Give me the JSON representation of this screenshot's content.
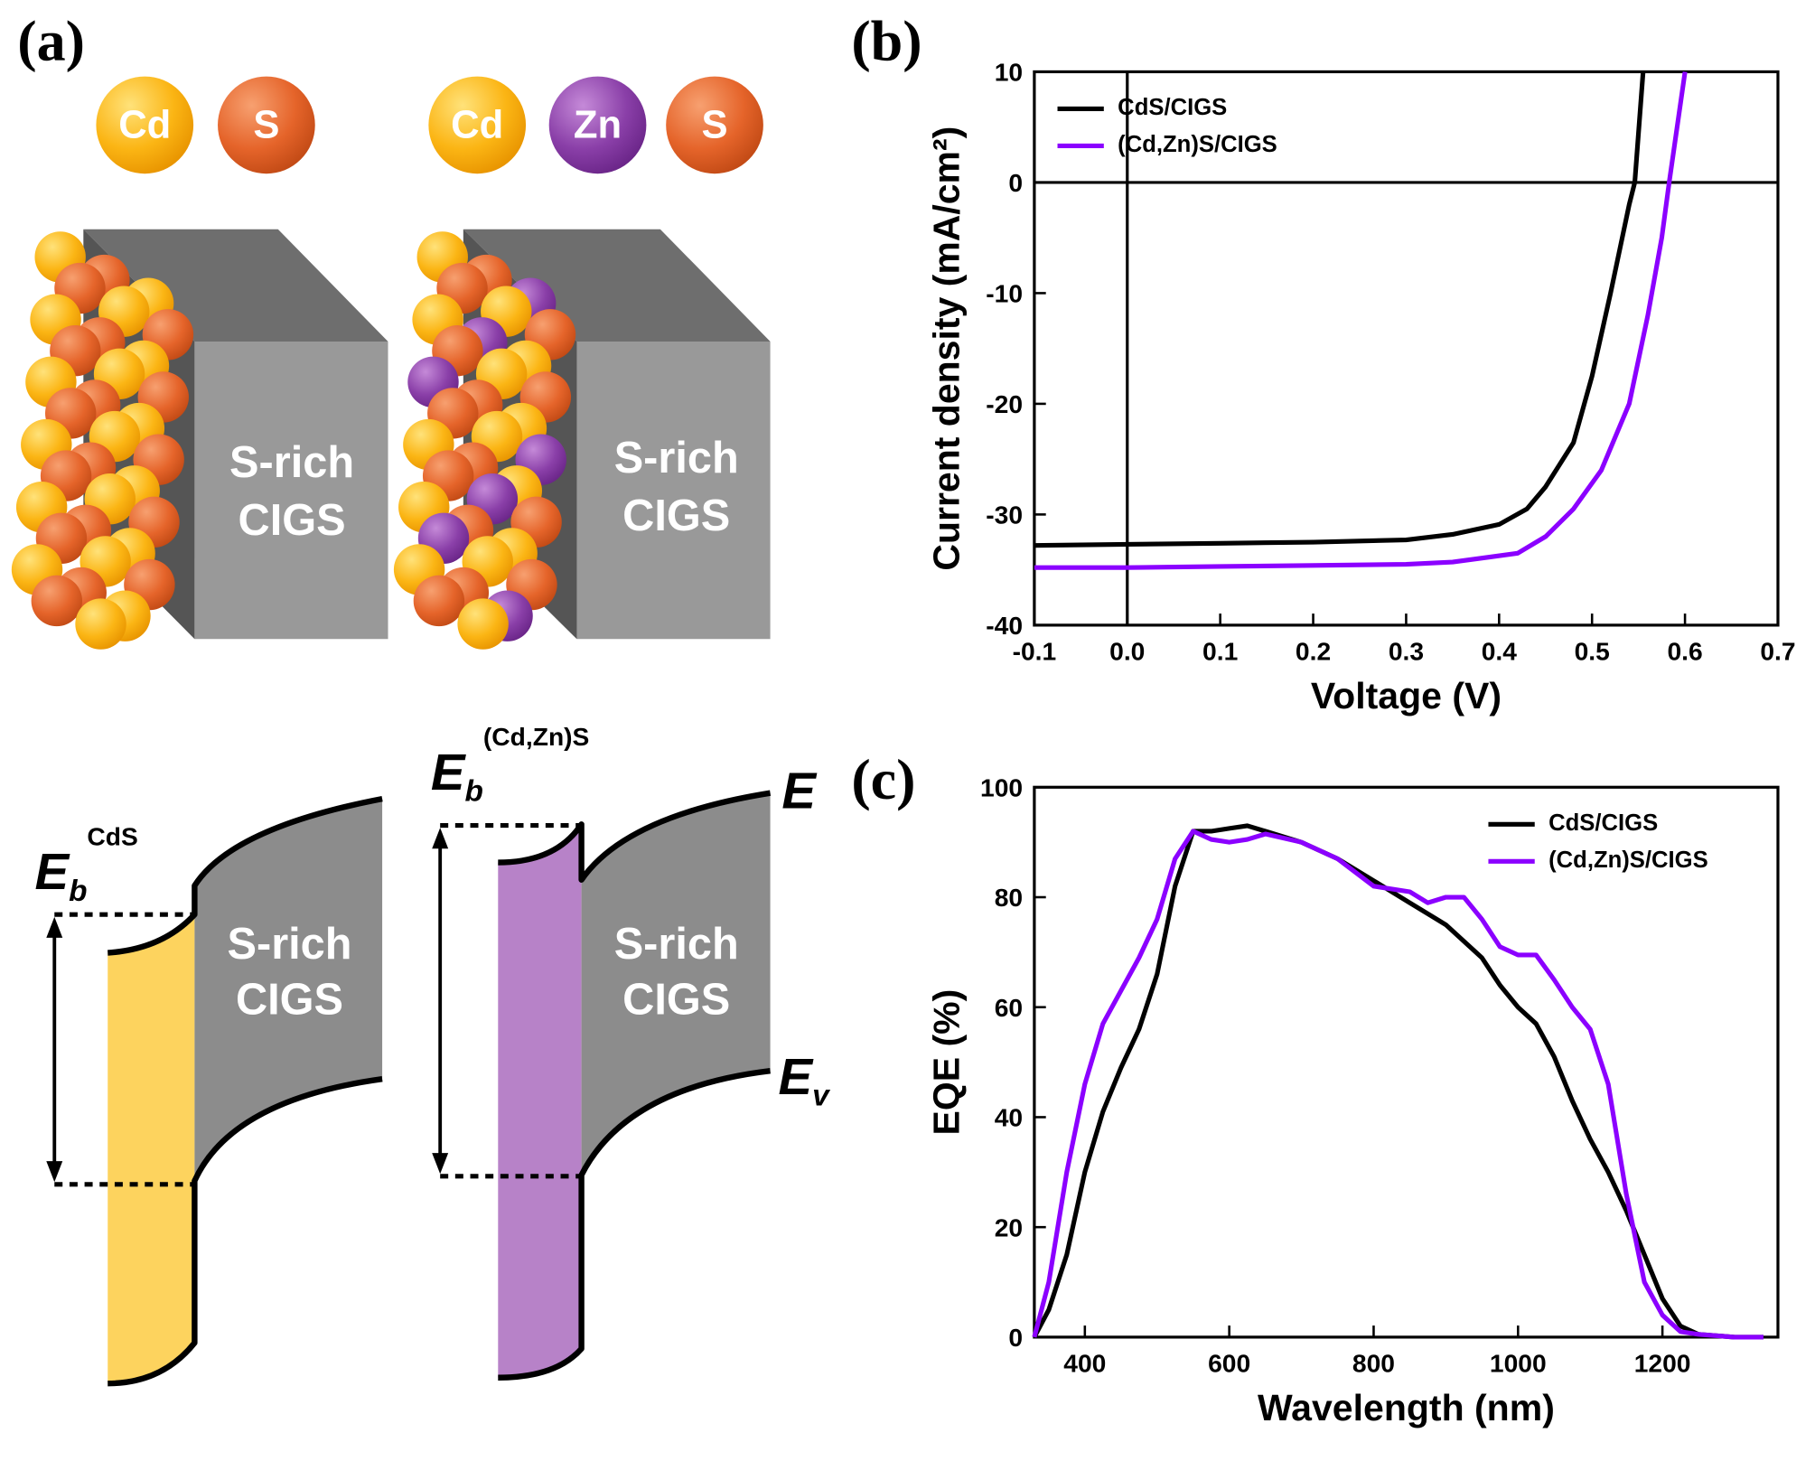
{
  "panels": [
    "(a)",
    "(b)",
    "(c)"
  ],
  "diagram": {
    "atoms_left": [
      "Cd",
      "S"
    ],
    "atoms_right": [
      "Cd",
      "Zn",
      "S"
    ],
    "block_label": [
      "S-rich",
      "CIGS"
    ],
    "eb_cds": {
      "symbol": "E",
      "sub": "b",
      "sup": "CdS"
    },
    "eb_cdzns": {
      "symbol": "E",
      "sub": "b",
      "sup": "(Cd,Zn)S"
    },
    "ec": "E",
    "ev": {
      "symbol": "E",
      "sub": "v"
    }
  },
  "chart_data": [
    {
      "type": "line",
      "xlabel": "Voltage (V)",
      "ylabel": "Current density (mA/cm²)",
      "xlim": [
        -0.1,
        0.7
      ],
      "ylim": [
        -40,
        10
      ],
      "xticks": [
        -0.1,
        {
          "value": 0,
          "label": "0.0"
        },
        0.1,
        0.2,
        0.3,
        0.4,
        0.5,
        0.6,
        0.7
      ],
      "yticks": [
        10,
        0,
        -10,
        -20,
        -30,
        -40
      ],
      "zero_lines": true,
      "legend": "upper left",
      "series": [
        {
          "name": "CdS/CIGS",
          "color": "#000000",
          "x": [
            -0.1,
            0.0,
            0.1,
            0.2,
            0.3,
            0.35,
            0.4,
            0.43,
            0.45,
            0.48,
            0.5,
            0.52,
            0.54,
            0.546,
            0.555
          ],
          "values": [
            -32.8,
            -32.7,
            -32.6,
            -32.5,
            -32.3,
            -31.8,
            -30.9,
            -29.5,
            -27.5,
            -23.5,
            -17.5,
            -10,
            -2,
            0,
            10
          ]
        },
        {
          "name": "(Cd,Zn)S/CIGS",
          "color": "#8b00ff",
          "x": [
            -0.1,
            0.0,
            0.1,
            0.2,
            0.3,
            0.35,
            0.42,
            0.45,
            0.48,
            0.51,
            0.54,
            0.56,
            0.575,
            0.583,
            0.6
          ],
          "values": [
            -34.8,
            -34.8,
            -34.7,
            -34.6,
            -34.5,
            -34.3,
            -33.5,
            -32,
            -29.5,
            -26,
            -20,
            -12,
            -5,
            0,
            10
          ]
        }
      ]
    },
    {
      "type": "line",
      "xlabel": "Wavelength (nm)",
      "ylabel": "EQE (%)",
      "xlim": [
        330,
        1360
      ],
      "ylim": [
        0,
        100
      ],
      "xticks": [
        400,
        600,
        800,
        1000,
        1200
      ],
      "yticks": [
        0,
        20,
        40,
        60,
        80,
        100
      ],
      "legend": "upper right",
      "series": [
        {
          "name": "CdS/CIGS",
          "color": "#000000",
          "x": [
            330,
            350,
            375,
            400,
            425,
            450,
            475,
            500,
            525,
            550,
            575,
            600,
            625,
            650,
            700,
            750,
            800,
            850,
            900,
            950,
            975,
            1000,
            1025,
            1050,
            1075,
            1100,
            1125,
            1150,
            1175,
            1200,
            1225,
            1250,
            1300,
            1340
          ],
          "values": [
            0,
            5,
            15,
            30,
            41,
            49,
            56,
            66,
            82,
            92,
            92,
            92.5,
            93,
            92,
            90,
            87,
            83,
            79,
            75,
            69,
            64,
            60,
            57,
            51,
            43,
            36,
            30,
            23,
            15,
            7,
            2,
            0.5,
            0,
            0
          ]
        },
        {
          "name": "(Cd,Zn)S/CIGS",
          "color": "#8b00ff",
          "x": [
            330,
            350,
            375,
            400,
            425,
            450,
            475,
            500,
            525,
            550,
            575,
            600,
            625,
            650,
            700,
            750,
            800,
            850,
            875,
            900,
            925,
            950,
            975,
            1000,
            1025,
            1050,
            1075,
            1100,
            1125,
            1150,
            1175,
            1200,
            1225,
            1250,
            1300,
            1340
          ],
          "values": [
            0,
            10,
            30,
            46,
            57,
            63,
            69,
            76,
            87,
            92,
            90.5,
            90,
            90.5,
            91.5,
            90,
            87,
            82,
            81,
            79,
            80,
            80,
            76,
            71,
            69.5,
            69.5,
            65,
            60,
            56,
            46,
            26,
            10,
            4,
            1,
            0.5,
            0,
            0
          ]
        }
      ]
    }
  ]
}
